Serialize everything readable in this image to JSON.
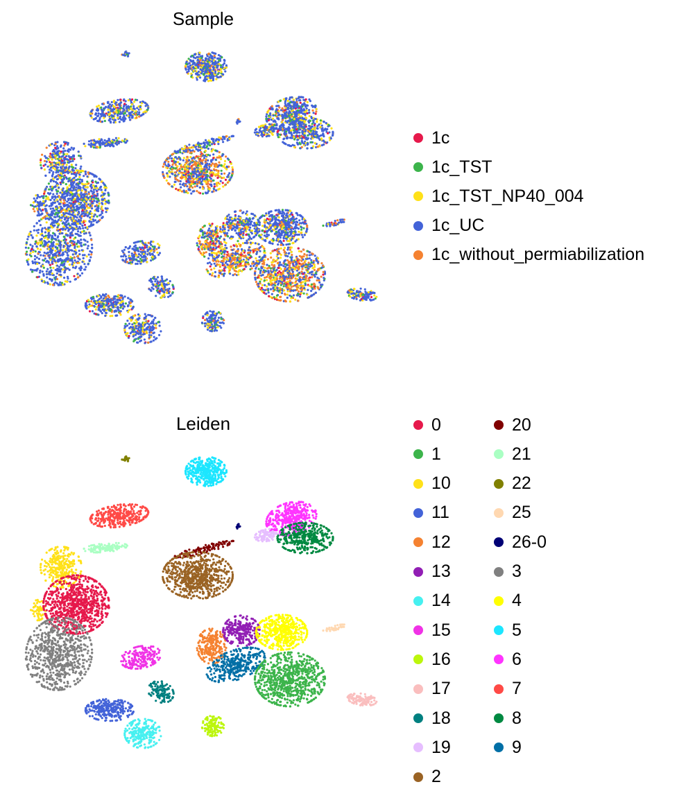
{
  "chart_data": [
    {
      "type": "scatter",
      "title": "Sample",
      "legend": "right",
      "axes": "hidden",
      "series": [
        {
          "name": "1c",
          "color": "#e6194b"
        },
        {
          "name": "1c_TST",
          "color": "#3cb44b"
        },
        {
          "name": "1c_TST_NP40_004",
          "color": "#ffe119"
        },
        {
          "name": "1c_UC",
          "color": "#4363d8"
        },
        {
          "name": "1c_without_permiabilization",
          "color": "#f58231"
        }
      ]
    },
    {
      "type": "scatter",
      "title": "Leiden",
      "legend": "right",
      "legend_columns": 2,
      "axes": "hidden",
      "series": [
        {
          "name": "0",
          "color": "#e6194b"
        },
        {
          "name": "1",
          "color": "#3cb44b"
        },
        {
          "name": "10",
          "color": "#ffe119"
        },
        {
          "name": "11",
          "color": "#4363d8"
        },
        {
          "name": "12",
          "color": "#f58231"
        },
        {
          "name": "13",
          "color": "#911eb4"
        },
        {
          "name": "14",
          "color": "#46f0f0"
        },
        {
          "name": "15",
          "color": "#f032e6"
        },
        {
          "name": "16",
          "color": "#bcf60c"
        },
        {
          "name": "17",
          "color": "#fabebe"
        },
        {
          "name": "18",
          "color": "#008080"
        },
        {
          "name": "19",
          "color": "#e6beff"
        },
        {
          "name": "2",
          "color": "#9a6324"
        },
        {
          "name": "20",
          "color": "#800000"
        },
        {
          "name": "21",
          "color": "#aaffc3"
        },
        {
          "name": "22",
          "color": "#808000"
        },
        {
          "name": "25",
          "color": "#ffd8b1"
        },
        {
          "name": "26-0",
          "color": "#000075"
        },
        {
          "name": "3",
          "color": "#808080"
        },
        {
          "name": "4",
          "color": "#ffff00"
        },
        {
          "name": "5",
          "color": "#1ce6ff"
        },
        {
          "name": "6",
          "color": "#ff34ff"
        },
        {
          "name": "7",
          "color": "#ff4a46"
        },
        {
          "name": "8",
          "color": "#008941"
        },
        {
          "name": "9",
          "color": "#006fa6"
        }
      ]
    }
  ]
}
